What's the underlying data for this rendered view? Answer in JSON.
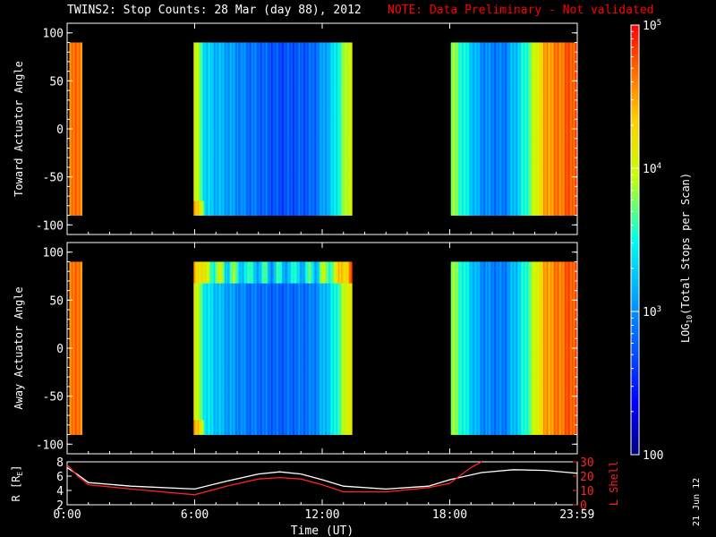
{
  "title": {
    "main": "TWINS2: Stop Counts: 28 Mar (day  88), 2012",
    "note": "NOTE: Data Preliminary - Not validated"
  },
  "date_stamp": "21 Jun 12",
  "colors": {
    "note": "#ff0000",
    "background": "#000000",
    "axes": "#ffffff",
    "lshell": "#ff2020",
    "r_line": "#ffffff"
  },
  "chart_data": [
    {
      "type": "heatmap",
      "ylabel": "Toward Actuator Angle",
      "ylim": [
        -110,
        110
      ],
      "yticks": [
        "100",
        "50",
        "0",
        "-50",
        "-100"
      ],
      "xlim": [
        0,
        24
      ],
      "xticks": [
        "0:00",
        "6:00",
        "12:00",
        "18:00",
        "23:59"
      ],
      "data_intervals_hours": [
        [
          0.1,
          0.7
        ],
        [
          5.9,
          13.4
        ],
        [
          18.0,
          24.0
        ]
      ],
      "angle_range": [
        -90,
        90
      ],
      "columns": [
        {
          "t": 0.1,
          "v": 4.7
        },
        {
          "t": 0.4,
          "v": 4.6
        },
        {
          "t": 0.7,
          "v": 4.7
        },
        {
          "t": 5.9,
          "v": 4.2
        },
        {
          "t": 6.5,
          "v": 3.3
        },
        {
          "t": 7.5,
          "v": 3.1
        },
        {
          "t": 8.5,
          "v": 2.9
        },
        {
          "t": 10.0,
          "v": 2.7
        },
        {
          "t": 11.5,
          "v": 2.8
        },
        {
          "t": 12.5,
          "v": 3.3
        },
        {
          "t": 13.0,
          "v": 3.8
        },
        {
          "t": 13.4,
          "v": 4.2
        },
        {
          "t": 18.0,
          "v": 3.9
        },
        {
          "t": 18.8,
          "v": 3.4
        },
        {
          "t": 19.5,
          "v": 3.0
        },
        {
          "t": 20.5,
          "v": 2.9
        },
        {
          "t": 21.5,
          "v": 3.5
        },
        {
          "t": 22.5,
          "v": 4.5
        },
        {
          "t": 23.99,
          "v": 4.8
        }
      ]
    },
    {
      "type": "heatmap",
      "ylabel": "Away Actuator Angle",
      "ylim": [
        -110,
        110
      ],
      "yticks": [
        "100",
        "50",
        "0",
        "-50",
        "-100"
      ],
      "xlim": [
        0,
        24
      ],
      "xticks": [
        "0:00",
        "6:00",
        "12:00",
        "18:00",
        "23:59"
      ],
      "data_intervals_hours": [
        [
          0.1,
          0.7
        ],
        [
          5.9,
          13.4
        ],
        [
          18.0,
          24.0
        ]
      ],
      "angle_range": [
        -90,
        90
      ],
      "bright_band_angle": [
        70,
        90
      ],
      "columns": [
        {
          "t": 0.1,
          "v": 4.7
        },
        {
          "t": 0.4,
          "v": 4.6
        },
        {
          "t": 0.7,
          "v": 4.7
        },
        {
          "t": 5.9,
          "v": 4.2
        },
        {
          "t": 6.5,
          "v": 3.4
        },
        {
          "t": 7.5,
          "v": 3.1
        },
        {
          "t": 8.5,
          "v": 2.9
        },
        {
          "t": 10.0,
          "v": 2.8
        },
        {
          "t": 11.5,
          "v": 2.9
        },
        {
          "t": 12.5,
          "v": 3.4
        },
        {
          "t": 13.0,
          "v": 3.9
        },
        {
          "t": 13.4,
          "v": 4.3
        },
        {
          "t": 18.0,
          "v": 3.9
        },
        {
          "t": 18.8,
          "v": 3.4
        },
        {
          "t": 19.5,
          "v": 3.0
        },
        {
          "t": 20.5,
          "v": 2.9
        },
        {
          "t": 21.5,
          "v": 3.5
        },
        {
          "t": 22.5,
          "v": 4.5
        },
        {
          "t": 23.99,
          "v": 4.8
        }
      ]
    },
    {
      "type": "line",
      "xlabel": "Time (UT)",
      "xlim": [
        0,
        24
      ],
      "xticks": [
        "0:00",
        "6:00",
        "12:00",
        "18:00",
        "23:59"
      ],
      "ylabel_left": "R [R",
      "ylabel_left_sub": "E",
      "ylabel_left_end": "]",
      "ylim_left": [
        2,
        8
      ],
      "yticks_left": [
        "8",
        "6",
        "4",
        "2"
      ],
      "ylabel_right": "L Shell",
      "ylim_right": [
        0,
        30
      ],
      "yticks_right": [
        "30",
        "20",
        "10",
        "0"
      ],
      "series": [
        {
          "axis": "left",
          "x": [
            0,
            0.5,
            1,
            3,
            6,
            7.5,
            9,
            10,
            11,
            12,
            13,
            15,
            17,
            18,
            19.5,
            21,
            22.5,
            24
          ],
          "y": [
            7.2,
            6.2,
            5.1,
            4.6,
            4.2,
            5.3,
            6.3,
            6.6,
            6.3,
            5.5,
            4.6,
            4.2,
            4.6,
            5.5,
            6.5,
            6.9,
            6.8,
            6.4
          ]
        },
        {
          "axis": "right",
          "x": [
            0,
            0.5,
            1,
            3,
            6,
            7.5,
            9,
            10,
            11,
            12,
            13,
            15,
            17,
            18,
            19,
            19.5
          ],
          "y": [
            28,
            20,
            14,
            11,
            7,
            13,
            18,
            19,
            18,
            14,
            9,
            9,
            12,
            15,
            26,
            30
          ]
        }
      ]
    }
  ],
  "colorbar": {
    "label_prefix": "LOG",
    "label_sub": "10",
    "label_suffix": "(Total Stops per Scan)",
    "range_log": [
      2,
      5
    ],
    "ticks": [
      {
        "major": "100",
        "v": 2
      },
      {
        "major": "10",
        "sup": "3",
        "v": 3
      },
      {
        "major": "10",
        "sup": "4",
        "v": 4
      },
      {
        "major": "10",
        "sup": "5",
        "v": 5
      }
    ]
  }
}
